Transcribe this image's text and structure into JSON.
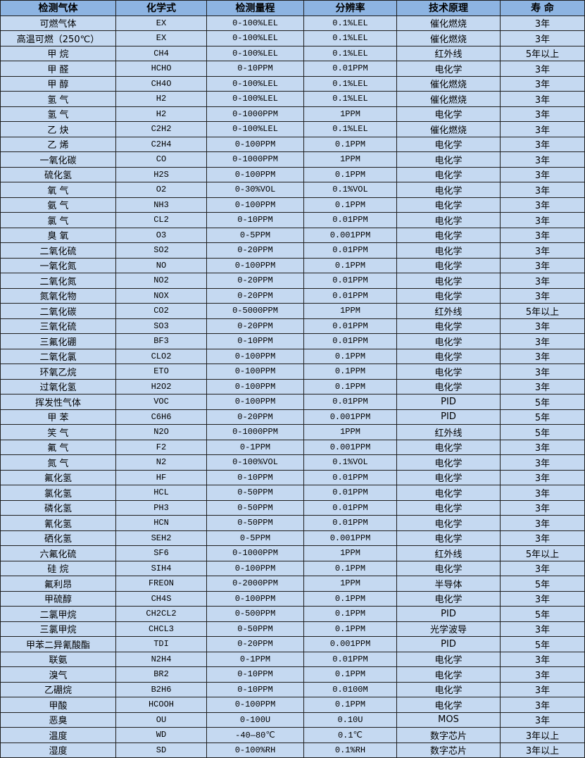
{
  "table": {
    "headers": [
      "检测气体",
      "化学式",
      "检测量程",
      "分辨率",
      "技术原理",
      "寿 命"
    ],
    "rows": [
      [
        "可燃气体",
        "EX",
        "0-100%LEL",
        "0.1%LEL",
        "催化燃烧",
        "3年"
      ],
      [
        "高温可燃（250℃）",
        "EX",
        "0-100%LEL",
        "0.1%LEL",
        "催化燃烧",
        "3年"
      ],
      [
        "甲 烷",
        "CH4",
        "0-100%LEL",
        "0.1%LEL",
        "红外线",
        "5年以上"
      ],
      [
        "甲 醛",
        "HCHO",
        "0-10PPM",
        "0.01PPM",
        "电化学",
        "3年"
      ],
      [
        "甲 醇",
        "CH4O",
        "0-100%LEL",
        "0.1%LEL",
        "催化燃烧",
        "3年"
      ],
      [
        "氢 气",
        "H2",
        "0-100%LEL",
        "0.1%LEL",
        "催化燃烧",
        "3年"
      ],
      [
        "氢 气",
        "H2",
        "0-1000PPM",
        "1PPM",
        "电化学",
        "3年"
      ],
      [
        "乙 炔",
        "C2H2",
        "0-100%LEL",
        "0.1%LEL",
        "催化燃烧",
        "3年"
      ],
      [
        "乙 烯",
        "C2H4",
        "0-100PPM",
        "0.1PPM",
        "电化学",
        "3年"
      ],
      [
        "一氧化碳",
        "CO",
        "0-1000PPM",
        "1PPM",
        "电化学",
        "3年"
      ],
      [
        "硫化氢",
        "H2S",
        "0-100PPM",
        "0.1PPM",
        "电化学",
        "3年"
      ],
      [
        "氧 气",
        "O2",
        "0-30%VOL",
        "0.1%VOL",
        "电化学",
        "3年"
      ],
      [
        "氨 气",
        "NH3",
        "0-100PPM",
        "0.1PPM",
        "电化学",
        "3年"
      ],
      [
        "氯 气",
        "CL2",
        "0-10PPM",
        "0.01PPM",
        "电化学",
        "3年"
      ],
      [
        "臭 氧",
        "O3",
        "0-5PPM",
        "0.001PPM",
        "电化学",
        "3年"
      ],
      [
        "二氧化硫",
        "SO2",
        "0-20PPM",
        "0.01PPM",
        "电化学",
        "3年"
      ],
      [
        "一氧化氮",
        "NO",
        "0-100PPM",
        "0.1PPM",
        "电化学",
        "3年"
      ],
      [
        "二氧化氮",
        "NO2",
        "0-20PPM",
        "0.01PPM",
        "电化学",
        "3年"
      ],
      [
        "氮氧化物",
        "NOX",
        "0-20PPM",
        "0.01PPM",
        "电化学",
        "3年"
      ],
      [
        "二氧化碳",
        "CO2",
        "0-5000PPM",
        "1PPM",
        "红外线",
        "5年以上"
      ],
      [
        "三氧化硫",
        "SO3",
        "0-20PPM",
        "0.01PPM",
        "电化学",
        "3年"
      ],
      [
        "三氟化硼",
        "BF3",
        "0-10PPM",
        "0.01PPM",
        "电化学",
        "3年"
      ],
      [
        "二氧化氯",
        "CLO2",
        "0-100PPM",
        "0.1PPM",
        "电化学",
        "3年"
      ],
      [
        "环氧乙烷",
        "ETO",
        "0-100PPM",
        "0.1PPM",
        "电化学",
        "3年"
      ],
      [
        "过氧化氢",
        "H2O2",
        "0-100PPM",
        "0.1PPM",
        "电化学",
        "3年"
      ],
      [
        "挥发性气体",
        "VOC",
        "0-100PPM",
        "0.01PPM",
        "PID",
        "5年"
      ],
      [
        "甲 苯",
        "C6H6",
        "0-20PPM",
        "0.001PPM",
        "PID",
        "5年"
      ],
      [
        "笑 气",
        "N2O",
        "0-1000PPM",
        "1PPM",
        "红外线",
        "5年"
      ],
      [
        "氟 气",
        "F2",
        "0-1PPM",
        "0.001PPM",
        "电化学",
        "3年"
      ],
      [
        "氮 气",
        "N2",
        "0-100%VOL",
        "0.1%VOL",
        "电化学",
        "3年"
      ],
      [
        "氟化氢",
        "HF",
        "0-10PPM",
        "0.01PPM",
        "电化学",
        "3年"
      ],
      [
        "氯化氢",
        "HCL",
        "0-50PPM",
        "0.01PPM",
        "电化学",
        "3年"
      ],
      [
        "磷化氢",
        "PH3",
        "0-50PPM",
        "0.01PPM",
        "电化学",
        "3年"
      ],
      [
        "氰化氢",
        "HCN",
        "0-50PPM",
        "0.01PPM",
        "电化学",
        "3年"
      ],
      [
        "硒化氢",
        "SEH2",
        "0-5PPM",
        "0.001PPM",
        "电化学",
        "3年"
      ],
      [
        "六氟化硫",
        "SF6",
        "0-1000PPM",
        "1PPM",
        "红外线",
        "5年以上"
      ],
      [
        "硅 烷",
        "SIH4",
        "0-100PPM",
        "0.1PPM",
        "电化学",
        "3年"
      ],
      [
        "氟利昂",
        "FREON",
        "0-2000PPM",
        "1PPM",
        "半导体",
        "5年"
      ],
      [
        "甲硫醇",
        "CH4S",
        "0-100PPM",
        "0.1PPM",
        "电化学",
        "3年"
      ],
      [
        "二氯甲烷",
        "CH2CL2",
        "0-500PPM",
        "0.1PPM",
        "PID",
        "5年"
      ],
      [
        "三氯甲烷",
        "CHCL3",
        "0-50PPM",
        "0.1PPM",
        "光学波导",
        "3年"
      ],
      [
        "甲苯二异氰酸酯",
        "TDI",
        "0-20PPM",
        "0.001PPM",
        "PID",
        "5年"
      ],
      [
        "联氨",
        "N2H4",
        "0-1PPM",
        "0.01PPM",
        "电化学",
        "3年"
      ],
      [
        "溴气",
        "BR2",
        "0-10PPM",
        "0.1PPM",
        "电化学",
        "3年"
      ],
      [
        "乙硼烷",
        "B2H6",
        "0-10PPM",
        "0.0100M",
        "电化学",
        "3年"
      ],
      [
        "甲酸",
        "HCOOH",
        "0-100PPM",
        "0.1PPM",
        "电化学",
        "3年"
      ],
      [
        "恶臭",
        "OU",
        "0-100U",
        "0.10U",
        "MOS",
        "3年"
      ],
      [
        "温度",
        "WD",
        "-40—80℃",
        "0.1℃",
        "数字芯片",
        "3年以上"
      ],
      [
        "湿度",
        "SD",
        "0-100%RH",
        "0.1%RH",
        "数字芯片",
        "3年以上"
      ]
    ]
  },
  "colors": {
    "header_bg": "#8DB4E2",
    "row_bg": "#C5D9F1",
    "border": "#1f1f1f"
  }
}
